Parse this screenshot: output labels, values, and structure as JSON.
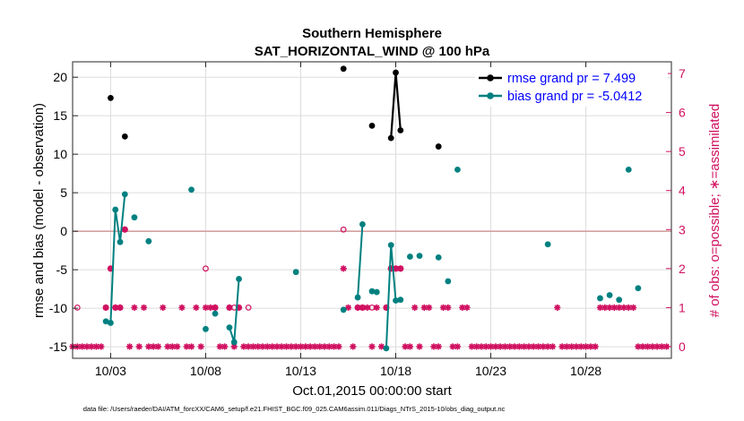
{
  "chart_data": {
    "type": "line",
    "title_line1": "Southern Hemisphere",
    "title_line2": "SAT_HORIZONTAL_WIND @ 100 hPa",
    "xlabel": "Oct.01,2015 00:00:00 start",
    "ylabel_left": "rmse and bias (model - observation)",
    "ylabel_right": "# of obs: o=possible; ∗=assimilated",
    "footer": "data file: /Users/raeder/DAI/ATM_forcXX/CAM6_setup/f.e21.FHIST_BGC.f09_025.CAM6assim.011/Diags_NTrS_2015-10/obs_diag_output.nc",
    "xlim": [
      1,
      32.5
    ],
    "ylim_left": [
      -16.5,
      22
    ],
    "ylim_right": [
      -0.3,
      7.3
    ],
    "x_ticks": [
      3,
      8,
      13,
      18,
      23,
      28
    ],
    "x_tick_labels": [
      "10/03",
      "10/08",
      "10/13",
      "10/18",
      "10/23",
      "10/28"
    ],
    "y_ticks_left": [
      -15,
      -10,
      -5,
      0,
      5,
      10,
      15,
      20
    ],
    "y_tick_labels_left": [
      "-15",
      "-10",
      "-5",
      "0",
      "5",
      "10",
      "15",
      "20"
    ],
    "y_ticks_right": [
      0,
      1,
      2,
      3,
      4,
      5,
      6,
      7
    ],
    "y_tick_labels_right": [
      "0",
      "1",
      "2",
      "3",
      "4",
      "5",
      "6",
      "7"
    ],
    "grid": true,
    "legend_position": "top-right",
    "colors": {
      "rmse": "#000000",
      "bias": "#008080",
      "obs": "#d01060",
      "zero_line": "#d4a0a0",
      "legend_text": "#0000ff",
      "grid": "#dcdcdc"
    },
    "series": [
      {
        "name": "rmse grand pr = 7.499",
        "key": "rmse",
        "x": [
          3.0,
          3.75,
          15.25,
          16.75,
          17.75,
          18.0,
          18.25,
          20.25
        ],
        "values": [
          17.3,
          12.3,
          21.1,
          13.7,
          12.1,
          20.6,
          13.1,
          11.0
        ]
      },
      {
        "name": "bias grand pr = -5.0412",
        "key": "bias",
        "x": [
          2.75,
          3.0,
          3.25,
          3.5,
          3.75,
          4.25,
          5.0,
          7.25,
          8.0,
          8.5,
          9.25,
          9.5,
          9.75,
          12.75,
          15.25,
          16.0,
          16.25,
          16.75,
          17.0,
          17.5,
          17.75,
          18.0,
          18.25,
          18.75,
          19.25,
          20.25,
          20.75,
          21.25,
          26.0,
          28.75,
          29.25,
          29.75,
          30.25,
          30.75
        ],
        "values": [
          -11.7,
          -11.9,
          2.8,
          -1.4,
          4.8,
          1.8,
          -1.3,
          5.4,
          -12.7,
          -10.7,
          -12.5,
          -14.4,
          -6.2,
          -5.3,
          -10.2,
          -8.6,
          0.9,
          -7.8,
          -7.9,
          -15.2,
          -1.8,
          -9.0,
          -8.9,
          -3.3,
          -3.2,
          -3.4,
          -6.5,
          8.0,
          -1.7,
          -8.7,
          -8.3,
          -8.9,
          8.0,
          -7.4
        ],
        "segments": [
          [
            0,
            4
          ],
          [
            10,
            12
          ],
          [
            15,
            16
          ],
          [
            17,
            18
          ],
          [
            19,
            22
          ]
        ]
      }
    ],
    "obs_assimilated": {
      "x": [
        1,
        1.25,
        1.5,
        1.75,
        2,
        2.25,
        2.5,
        2.75,
        3,
        3.25,
        3.5,
        3.75,
        4,
        4.25,
        4.5,
        4.75,
        5,
        5.25,
        5.5,
        5.75,
        6,
        6.25,
        6.5,
        6.75,
        7,
        7.25,
        7.5,
        7.75,
        8,
        8.25,
        8.5,
        8.75,
        9,
        9.25,
        9.5,
        9.75,
        10,
        10.25,
        10.5,
        10.75,
        11,
        11.25,
        11.5,
        11.75,
        12,
        12.25,
        12.5,
        12.75,
        13,
        13.25,
        13.5,
        13.75,
        14,
        14.25,
        14.5,
        14.75,
        15,
        15.25,
        15.5,
        15.75,
        16,
        16.25,
        16.5,
        16.75,
        17,
        17.25,
        17.5,
        17.75,
        18,
        18.25,
        18.5,
        18.75,
        19,
        19.25,
        19.5,
        19.75,
        20,
        20.25,
        20.5,
        20.75,
        21,
        21.25,
        21.5,
        21.75,
        22,
        22.25,
        22.5,
        22.75,
        23,
        23.25,
        23.5,
        23.75,
        24,
        24.25,
        24.5,
        24.75,
        25,
        25.25,
        25.5,
        25.75,
        26,
        26.25,
        26.5,
        26.75,
        27,
        27.25,
        27.5,
        27.75,
        28,
        28.25,
        28.5,
        28.75,
        29,
        29.25,
        29.5,
        29.75,
        30,
        30.25,
        30.5,
        30.75,
        31,
        31.25,
        31.5,
        31.75,
        32,
        32.25
      ],
      "values": [
        0,
        0,
        0,
        0,
        0,
        0,
        0,
        1,
        2,
        1,
        1,
        3,
        0,
        1,
        0,
        1,
        0,
        0,
        0,
        1,
        0,
        0,
        0,
        1,
        0,
        0,
        1,
        0,
        1,
        1,
        1,
        0,
        0,
        1,
        0,
        1,
        0,
        0,
        0,
        0,
        0,
        0,
        0,
        0,
        0,
        0,
        0,
        0,
        0,
        0,
        0,
        0,
        0,
        0,
        0,
        0,
        0,
        2,
        1,
        0,
        1,
        1,
        1,
        0,
        1,
        0,
        1,
        2,
        2,
        2,
        0,
        0,
        1,
        0,
        1,
        1,
        0,
        0,
        1,
        1,
        0,
        0,
        1,
        1,
        0,
        0,
        0,
        0,
        0,
        0,
        0,
        0,
        0,
        0,
        0,
        0,
        0,
        0,
        0,
        0,
        0,
        0,
        1,
        0,
        0,
        0,
        0,
        0,
        0,
        0,
        0,
        1,
        1,
        1,
        1,
        1,
        1,
        1,
        1,
        0,
        0,
        0,
        0,
        0,
        0,
        0
      ]
    },
    "obs_possible": {
      "x": [
        1.25,
        2.75,
        3.0,
        3.25,
        3.5,
        3.75,
        8.0,
        8.5,
        9.25,
        9.5,
        9.75,
        10.25,
        15.25,
        16.0,
        16.25,
        16.75,
        17.5,
        17.75,
        18.0,
        18.25
      ],
      "values": [
        1,
        1,
        2,
        1,
        1,
        3,
        2,
        1,
        1,
        1,
        1,
        1,
        3,
        1,
        1,
        1,
        1,
        2,
        2,
        2
      ]
    }
  }
}
